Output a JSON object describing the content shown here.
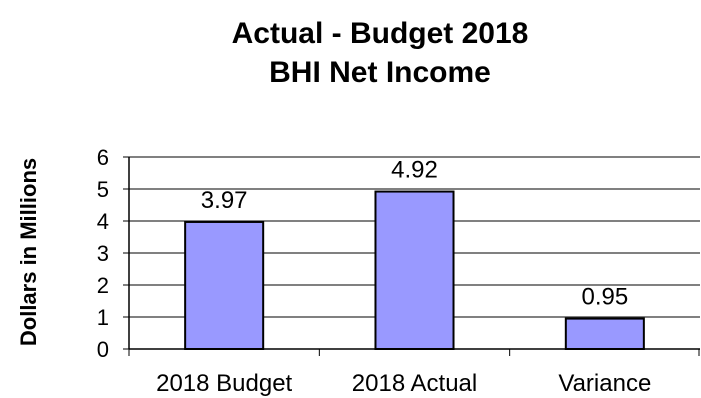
{
  "chart_data": {
    "type": "bar",
    "title_lines": [
      "Actual - Budget  2018",
      "BHI Net Income"
    ],
    "ylabel": "Dollars in Millions",
    "xlabel": "",
    "categories": [
      "2018 Budget",
      "2018 Actual",
      "Variance"
    ],
    "values": [
      3.97,
      4.92,
      0.95
    ],
    "data_labels": [
      "3.97",
      "4.92",
      "0.95"
    ],
    "ylim": [
      0,
      6
    ],
    "yticks": [
      0,
      1,
      2,
      3,
      4,
      5,
      6
    ],
    "grid": true,
    "legend": "none",
    "colors": {
      "bar_fill": "#9999ff",
      "bar_stroke": "#000000",
      "grid": "#000000",
      "background": "#ffffff"
    }
  }
}
